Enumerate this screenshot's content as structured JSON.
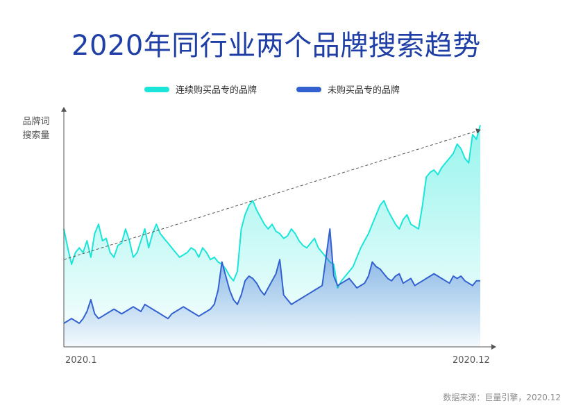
{
  "title": "2020年同行业两个品牌搜索趋势",
  "source": "数据来源：巨量引擎，2020.12",
  "colors": {
    "title": "#1f3fa6",
    "series_a": "#19e6d8",
    "series_b": "#3361d0",
    "trend": "#555555",
    "axis": "#555555"
  },
  "chart_data": {
    "type": "area",
    "ylabel": [
      "品牌词",
      "搜索量"
    ],
    "xlabel": "",
    "x_ticks": [
      "2020.1",
      "2020.12"
    ],
    "y_range": [
      0,
      100
    ],
    "grid": false,
    "legend_position": "top",
    "trend_line": {
      "style": "dashed-arrow",
      "start": 37,
      "end": 92
    },
    "series": [
      {
        "name": "连续购买品专的品牌",
        "color": "#19e6d8",
        "values": [
          50,
          42,
          35,
          40,
          42,
          40,
          45,
          38,
          48,
          52,
          45,
          46,
          40,
          38,
          43,
          44,
          50,
          45,
          38,
          40,
          45,
          50,
          42,
          48,
          52,
          48,
          46,
          44,
          42,
          40,
          38,
          39,
          40,
          42,
          41,
          38,
          42,
          40,
          37,
          38,
          36,
          35,
          33,
          30,
          28,
          32,
          50,
          56,
          60,
          62,
          58,
          55,
          52,
          50,
          52,
          49,
          48,
          46,
          47,
          50,
          48,
          45,
          43,
          42,
          44,
          46,
          42,
          40,
          38,
          36,
          35,
          25,
          28,
          30,
          32,
          34,
          38,
          42,
          45,
          48,
          52,
          56,
          60,
          62,
          58,
          55,
          52,
          50,
          54,
          56,
          52,
          51,
          50,
          60,
          72,
          74,
          75,
          73,
          76,
          78,
          80,
          82,
          86,
          84,
          80,
          78,
          90,
          88,
          94
        ]
      },
      {
        "name": "未购买品专的品牌",
        "color": "#3361d0",
        "values": [
          10,
          11,
          12,
          11,
          10,
          12,
          15,
          20,
          14,
          12,
          13,
          14,
          15,
          16,
          15,
          14,
          15,
          16,
          17,
          16,
          15,
          18,
          17,
          16,
          15,
          14,
          13,
          12,
          14,
          15,
          16,
          17,
          16,
          15,
          14,
          13,
          14,
          15,
          16,
          18,
          24,
          36,
          30,
          24,
          20,
          18,
          22,
          28,
          30,
          29,
          27,
          24,
          22,
          25,
          28,
          31,
          37,
          22,
          20,
          18,
          19,
          20,
          21,
          22,
          23,
          24,
          25,
          26,
          38,
          50,
          30,
          26,
          27,
          28,
          29,
          27,
          25,
          26,
          27,
          30,
          36,
          34,
          33,
          31,
          29,
          28,
          30,
          31,
          27,
          28,
          29,
          26,
          27,
          28,
          29,
          30,
          31,
          30,
          29,
          28,
          27,
          30,
          29,
          30,
          28,
          27,
          26,
          28,
          28
        ]
      }
    ]
  }
}
